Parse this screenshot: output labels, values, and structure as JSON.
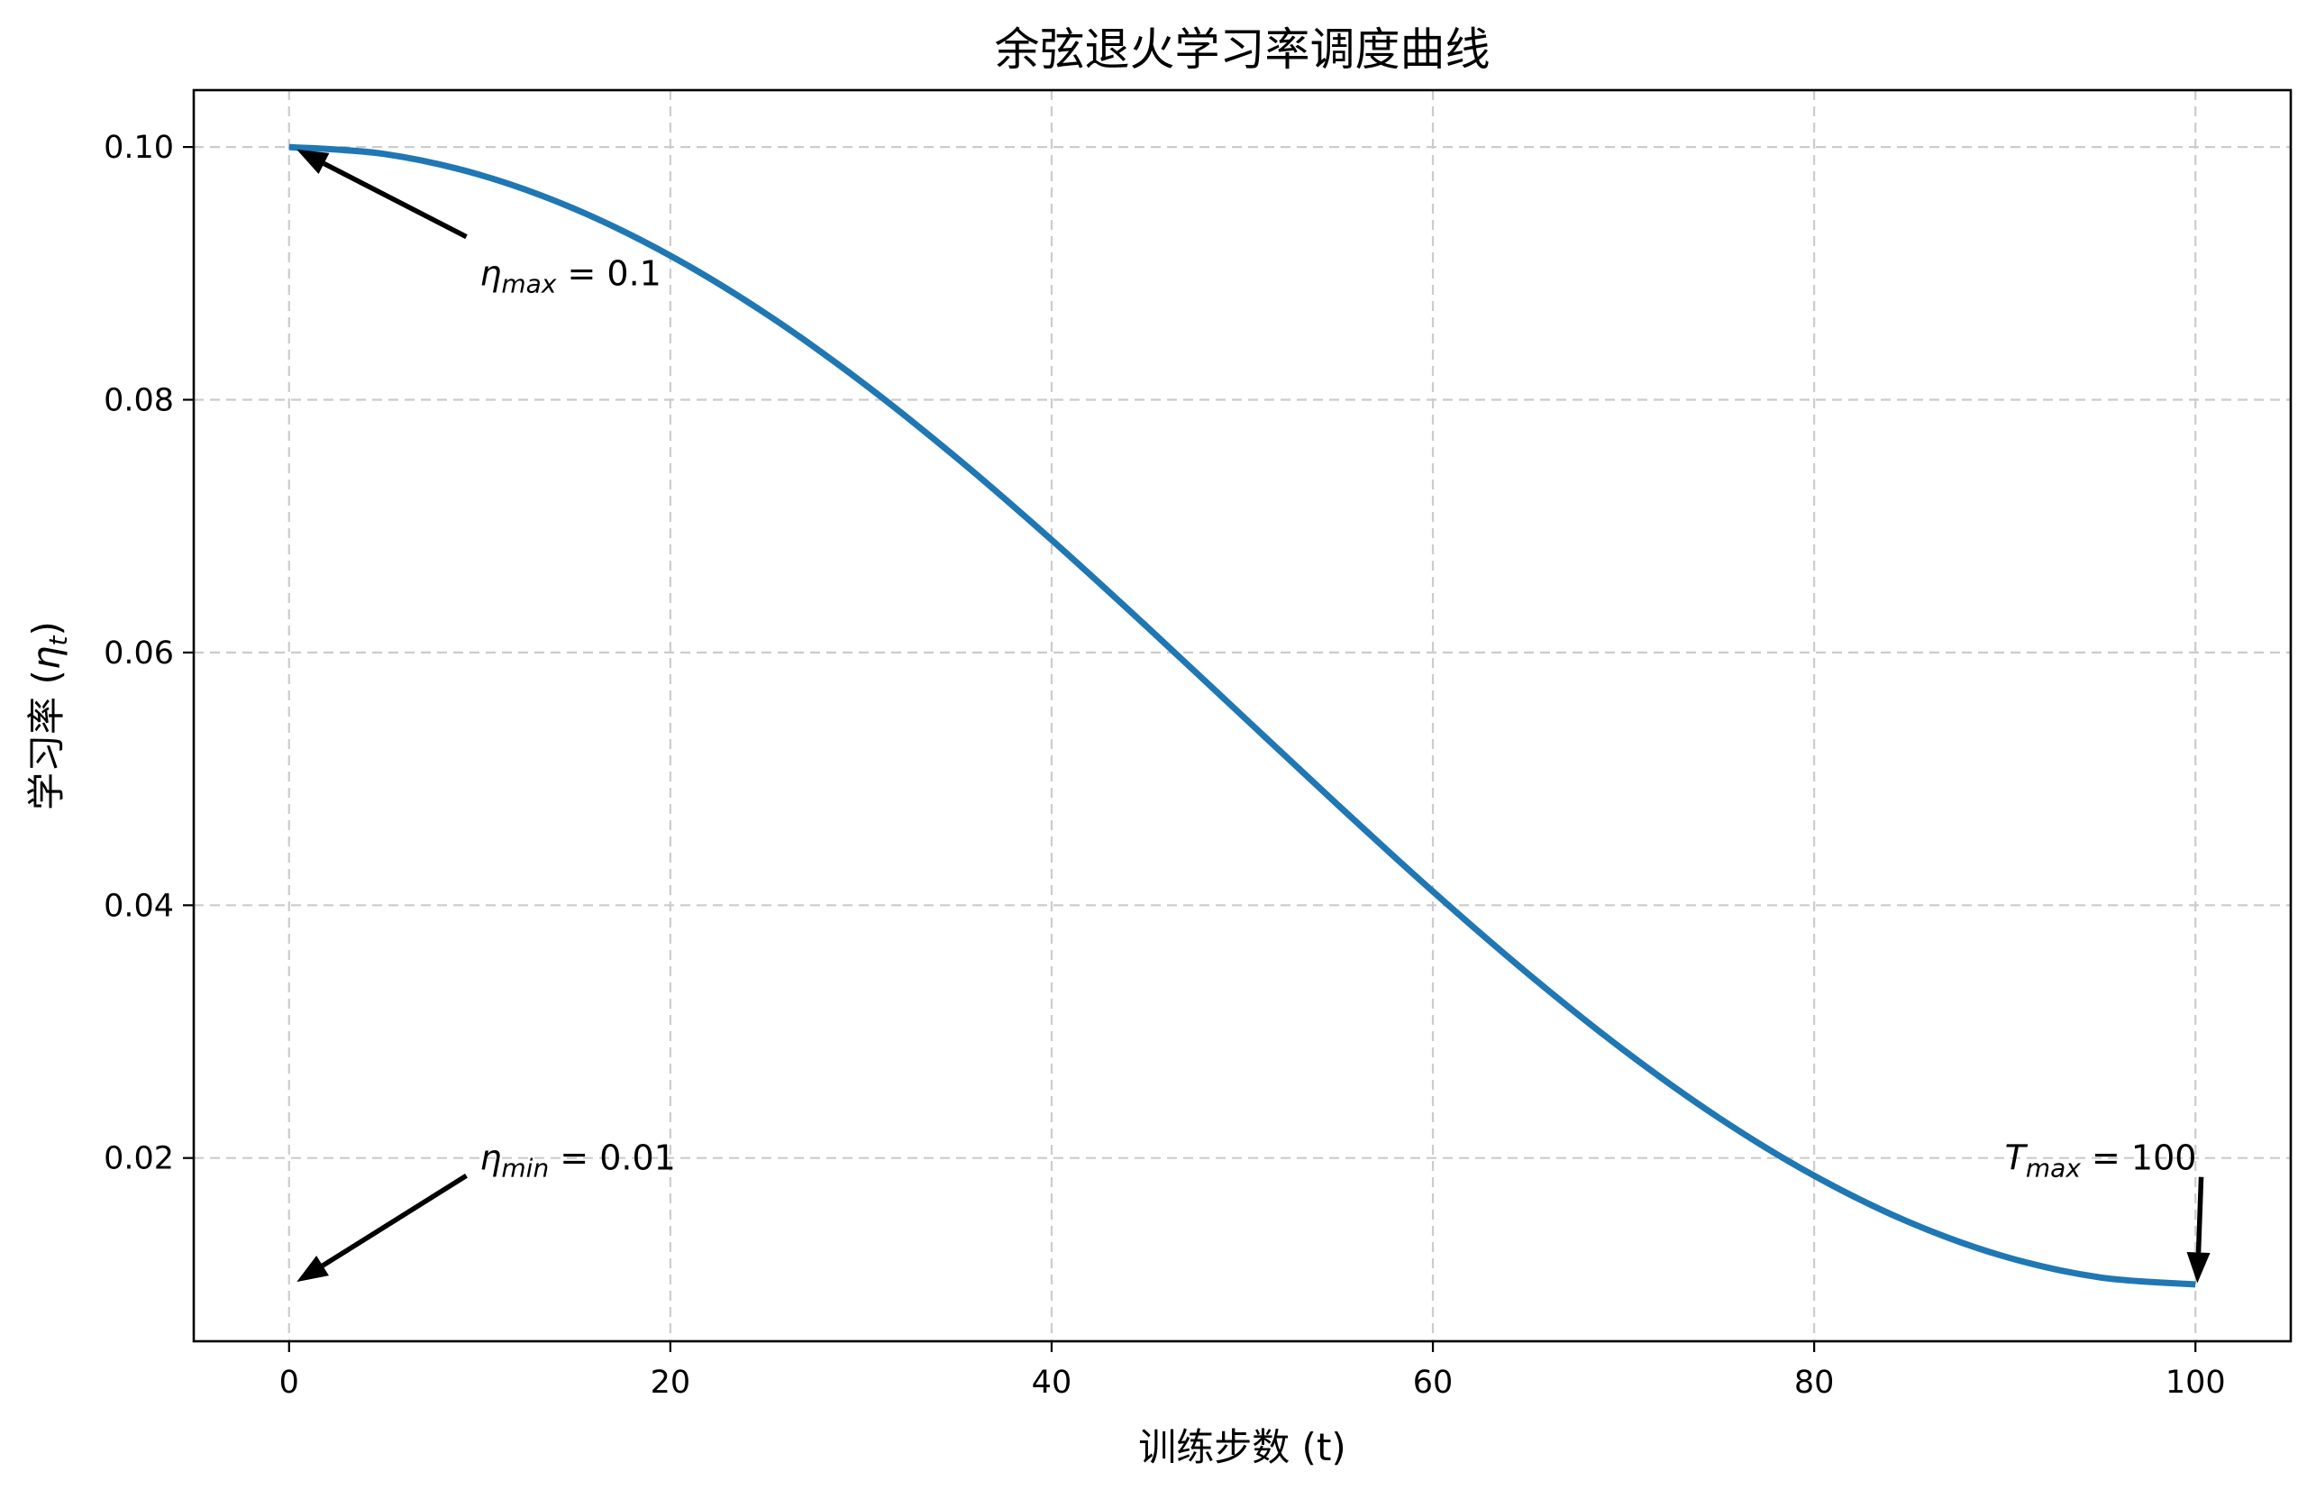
{
  "chart_data": {
    "type": "line",
    "title": "余弦退火学习率调度曲线",
    "xlabel": "训练步数 (t)",
    "ylabel_prefix": "学习率 (",
    "ylabel_symbol": "η",
    "ylabel_sub": "t",
    "ylabel_suffix": ")",
    "xlim": [
      -5,
      105
    ],
    "ylim": [
      0.0055,
      0.1045
    ],
    "x_ticks": [
      0,
      20,
      40,
      60,
      80,
      100
    ],
    "x_tick_labels": [
      "0",
      "20",
      "40",
      "60",
      "80",
      "100"
    ],
    "y_ticks": [
      0.02,
      0.04,
      0.06,
      0.08,
      0.1
    ],
    "y_tick_labels": [
      "0.02",
      "0.04",
      "0.06",
      "0.08",
      "0.10"
    ],
    "grid": true,
    "series": [
      {
        "color": "#1f77b4",
        "x": [
          0,
          5,
          10,
          15,
          20,
          25,
          30,
          35,
          40,
          45,
          50,
          55,
          60,
          65,
          70,
          75,
          80,
          85,
          90,
          95,
          100
        ],
        "y": [
          0.1,
          0.09945,
          0.0978,
          0.09509,
          0.0914,
          0.08682,
          0.08145,
          0.07543,
          0.06891,
          0.06204,
          0.055,
          0.04796,
          0.04109,
          0.03457,
          0.02855,
          0.02318,
          0.0186,
          0.01491,
          0.0122,
          0.01055,
          0.01
        ]
      }
    ],
    "annotations": [
      {
        "symbol": "η",
        "sub": "max",
        "rest": " = 0.1",
        "text_xy": [
          10,
          0.09
        ],
        "arrow_tail": [
          9.3,
          0.0929
        ],
        "arrow_tip": [
          0.4,
          0.0998
        ]
      },
      {
        "symbol": "η",
        "sub": "min",
        "rest": " = 0.01",
        "text_xy": [
          10,
          0.02
        ],
        "arrow_tail": [
          9.3,
          0.0186
        ],
        "arrow_tip": [
          0.4,
          0.0102
        ]
      },
      {
        "symbol": "T",
        "sub": "max",
        "rest": " = 100",
        "text_xy": [
          90,
          0.02
        ],
        "arrow_tail": [
          100.3,
          0.0185
        ],
        "arrow_tip": [
          100.1,
          0.0101
        ]
      }
    ]
  }
}
